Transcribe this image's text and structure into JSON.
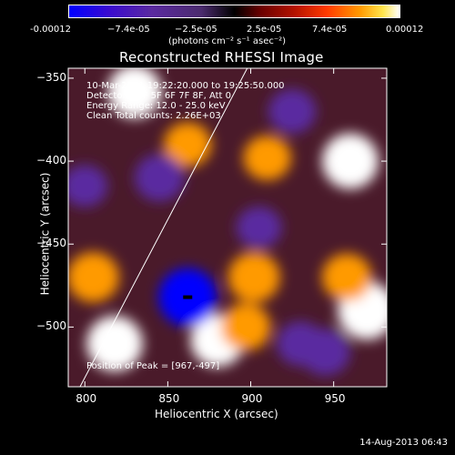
{
  "colorbar": {
    "ticks": [
      "-0.00012",
      "−7.4e-05",
      "−2.5e-05",
      "2.5e-05",
      "7.4e-05",
      "0.00012"
    ],
    "units": "(photons cm⁻² s⁻¹ asec⁻²)"
  },
  "chart_data": {
    "type": "heatmap",
    "title": "Reconstructed RHESSI Image",
    "xlabel": "Heliocentric X (arcsec)",
    "ylabel": "Heliocentric Y (arcsec)",
    "xlim": [
      790,
      982
    ],
    "ylim": [
      -536,
      -344
    ],
    "xticks": [
      "800",
      "850",
      "900",
      "950"
    ],
    "yticks": [
      "-350",
      "-400",
      "-450",
      "-500"
    ],
    "colorscale": {
      "min": -0.00012,
      "max": 0.00012,
      "colors": [
        "#0000ff",
        "#5a2aa0",
        "#000000",
        "#b31100",
        "#ff9a00",
        "#ffffff"
      ]
    },
    "annotations": [
      "10-Mar-2011 19:22:20.000 to 19:25:50.000",
      "Detectors: 4F 5F 6F 7F 8F, Att 0",
      "Energy Range: 12.0 - 25.0 keV",
      "Clean    Total counts: 2.26E+03"
    ],
    "peak_label": "Position of Peak = [967,-497]",
    "limb_line": {
      "x": [
        795,
        900
      ],
      "y": [
        -540,
        -340
      ]
    },
    "features": [
      {
        "x": 830,
        "y": -358,
        "value": 0.0001
      },
      {
        "x": 805,
        "y": -470,
        "value": 9e-05
      },
      {
        "x": 818,
        "y": -510,
        "value": 0.00011
      },
      {
        "x": 880,
        "y": -508,
        "value": 0.0001
      },
      {
        "x": 897,
        "y": -500,
        "value": 8e-05
      },
      {
        "x": 902,
        "y": -470,
        "value": 9e-05
      },
      {
        "x": 910,
        "y": -398,
        "value": 7e-05
      },
      {
        "x": 960,
        "y": -400,
        "value": 0.00011
      },
      {
        "x": 970,
        "y": -490,
        "value": 0.00012
      },
      {
        "x": 958,
        "y": -470,
        "value": 8e-05
      },
      {
        "x": 862,
        "y": -390,
        "value": 7e-05
      },
      {
        "x": 862,
        "y": -482,
        "value": -0.00012
      },
      {
        "x": 845,
        "y": -410,
        "value": -8e-05
      },
      {
        "x": 925,
        "y": -370,
        "value": -7e-05
      },
      {
        "x": 905,
        "y": -440,
        "value": -6e-05
      },
      {
        "x": 800,
        "y": -415,
        "value": -6e-05
      },
      {
        "x": 930,
        "y": -510,
        "value": -7e-05
      },
      {
        "x": 945,
        "y": -515,
        "value": -8e-05
      }
    ]
  },
  "timestamp": "14-Aug-2013 06:43"
}
